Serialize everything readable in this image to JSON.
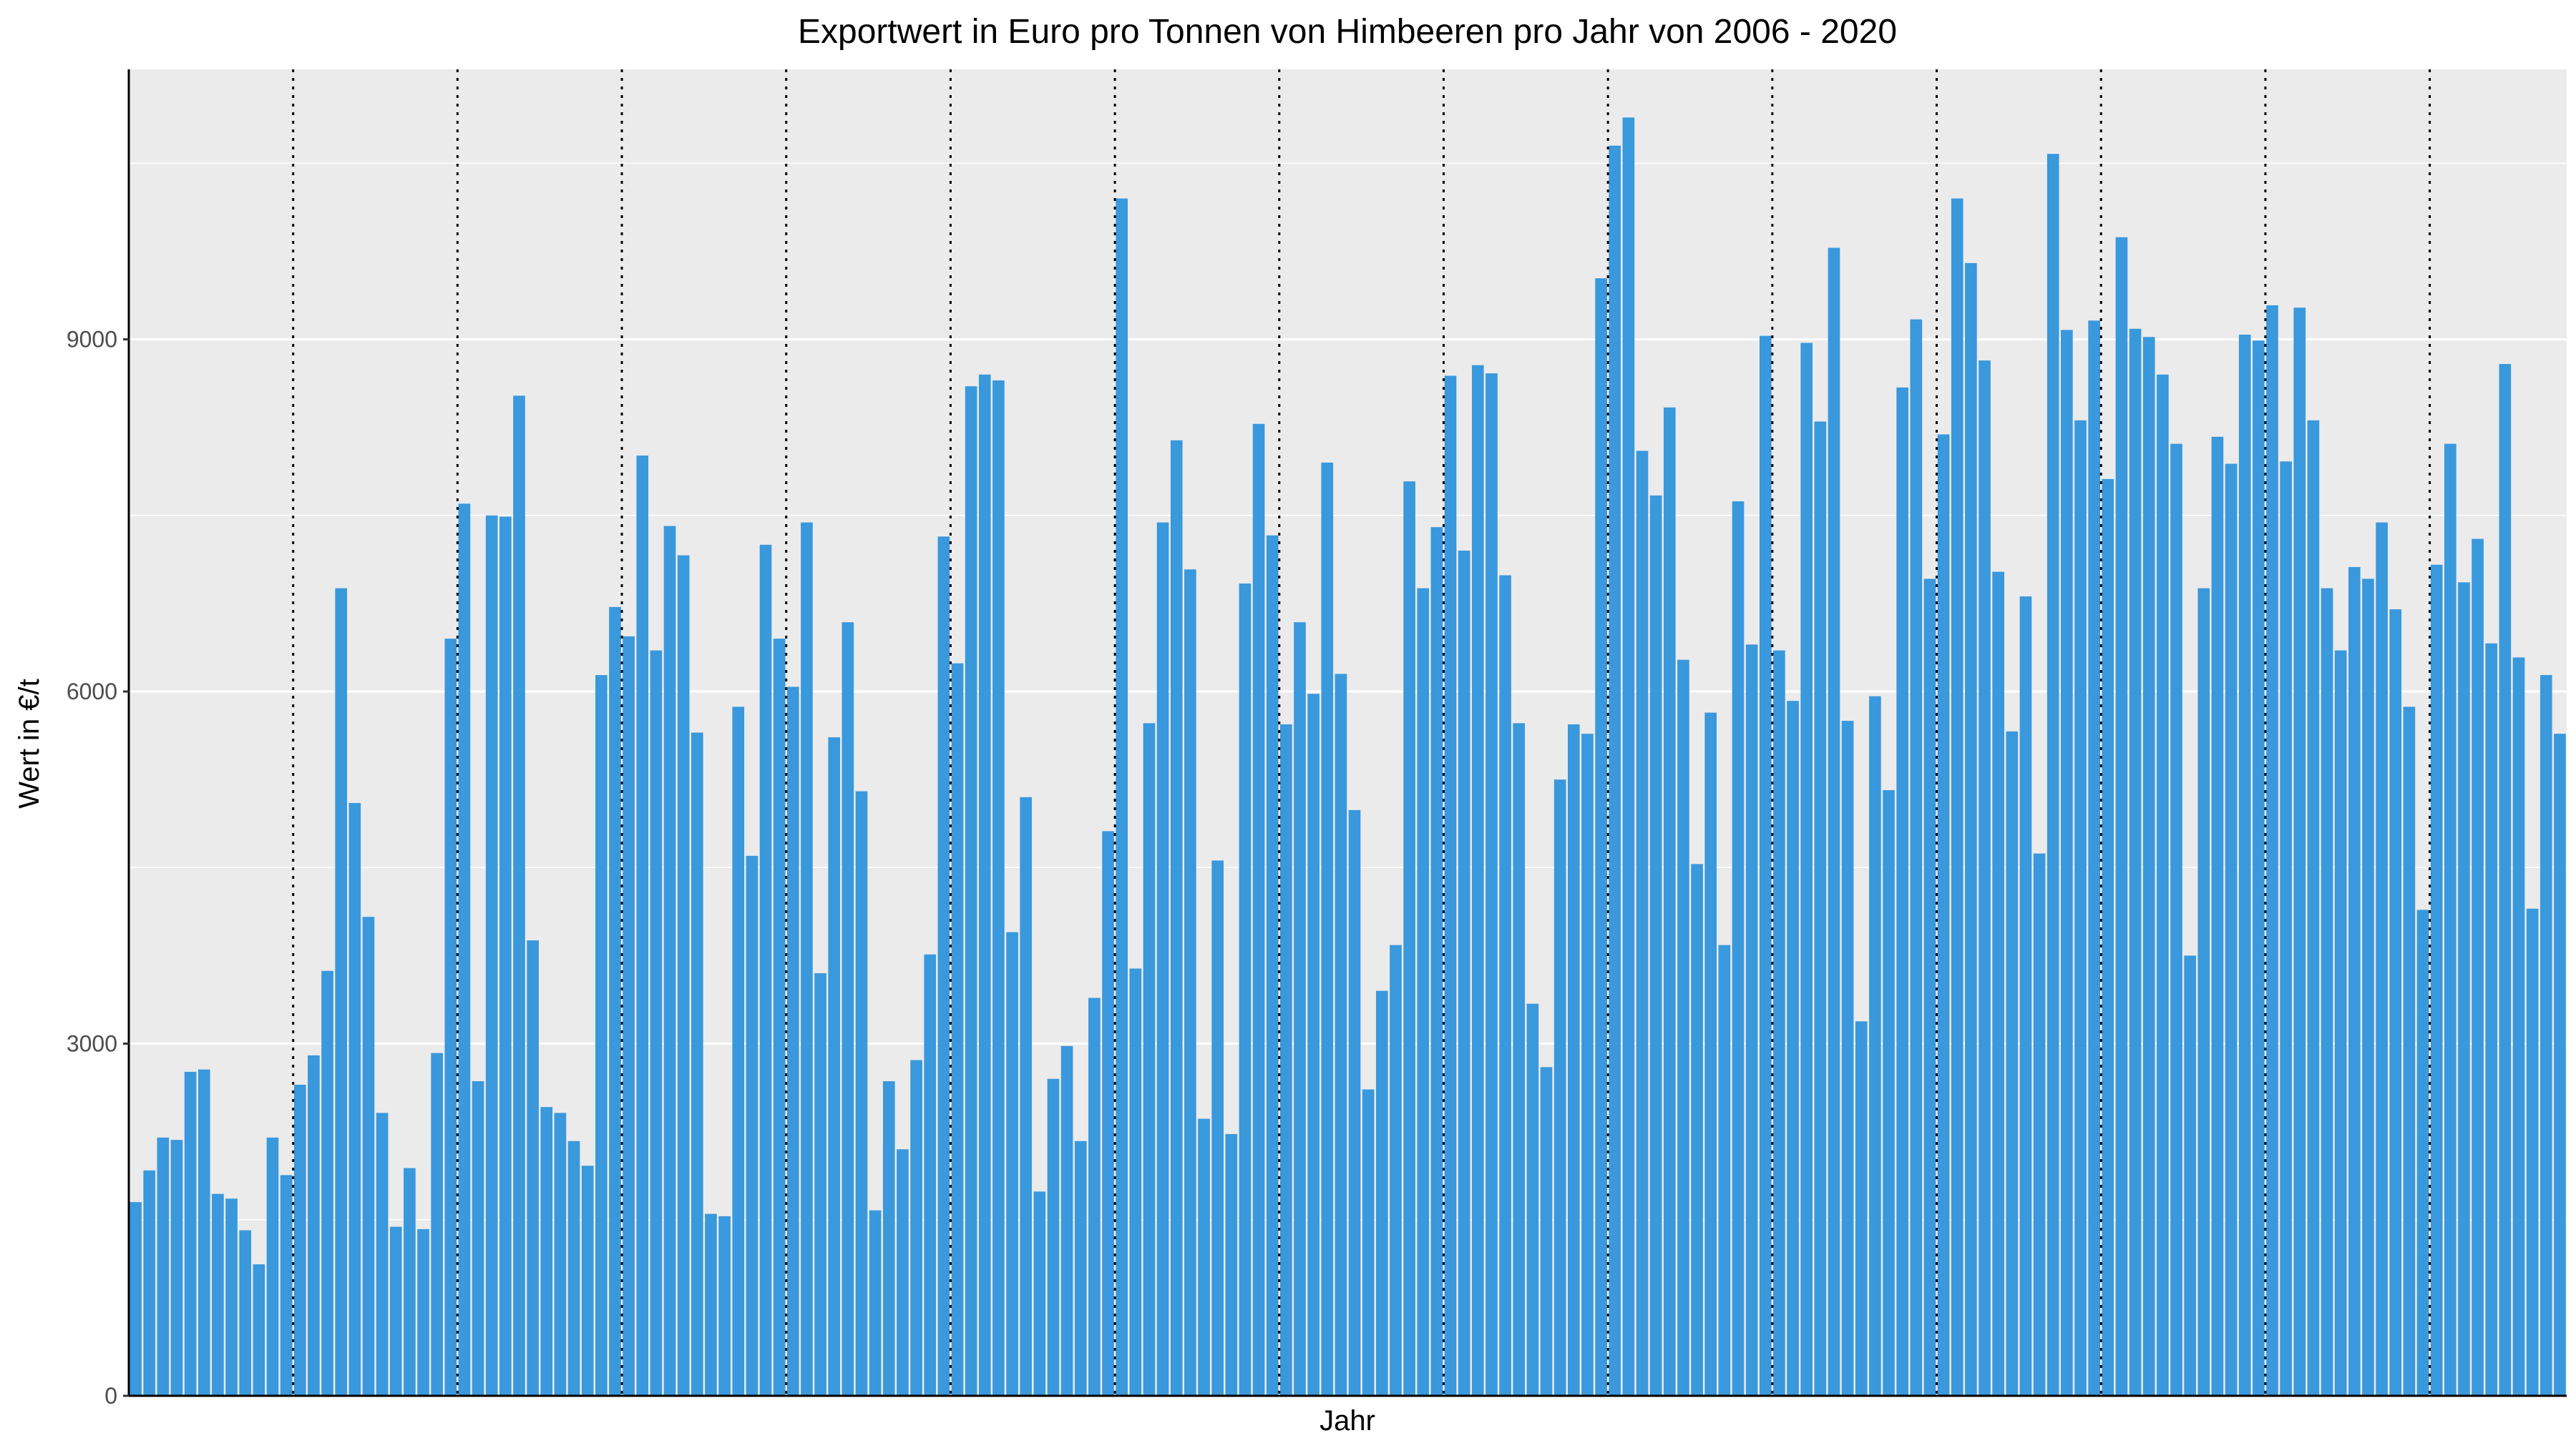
{
  "chart_data": {
    "type": "bar",
    "title": "Exportwert in Euro pro Tonnen von Himbeeren pro Jahr von 2006 - 2020",
    "xlabel": "Jahr",
    "ylabel": "Wert in €/t",
    "ylim": [
      0,
      11300
    ],
    "yticks": [
      0,
      3000,
      6000,
      9000
    ],
    "ytick_labels": [
      "0",
      "3000",
      "6000",
      "9000"
    ],
    "grid": true,
    "bar_color": "#3a98dc",
    "panel_color": "#ebebeb",
    "year_separator_style": "dotted",
    "months_per_year": 12,
    "values": [
      1650,
      1920,
      2200,
      2180,
      2760,
      2780,
      1720,
      1680,
      1410,
      1120,
      2200,
      1880,
      2650,
      2900,
      3620,
      6880,
      5050,
      4080,
      2410,
      1440,
      1940,
      1420,
      2920,
      6450,
      7600,
      2680,
      7500,
      7490,
      8520,
      3880,
      2460,
      2410,
      2170,
      1960,
      6140,
      6720,
      6470,
      8010,
      6350,
      7410,
      7160,
      5650,
      1550,
      1530,
      5870,
      4600,
      7250,
      6450,
      6040,
      7440,
      3600,
      5610,
      6590,
      5150,
      1580,
      2680,
      2100,
      2860,
      3760,
      7320,
      6240,
      8600,
      8700,
      8650,
      3950,
      5100,
      1740,
      2700,
      2980,
      2170,
      3390,
      4810,
      10200,
      3640,
      5730,
      7440,
      8140,
      7040,
      2360,
      4560,
      2230,
      6920,
      8280,
      7330,
      5720,
      6590,
      5980,
      7950,
      6150,
      4990,
      2610,
      3450,
      3840,
      7790,
      6880,
      7400,
      8690,
      7200,
      8780,
      8710,
      6990,
      5730,
      3340,
      2800,
      5250,
      5720,
      5640,
      9520,
      10650,
      10890,
      8050,
      7670,
      8420,
      6270,
      4530,
      5820,
      3840,
      7620,
      6400,
      9030,
      6350,
      5920,
      8970,
      8300,
      9780,
      5750,
      3190,
      5960,
      5160,
      8590,
      9170,
      6960,
      8190,
      10200,
      9650,
      8820,
      7020,
      5660,
      6810,
      4620,
      10580,
      9080,
      8310,
      9160,
      7810,
      9870,
      9090,
      9020,
      8700,
      8110,
      3750,
      6880,
      8170,
      7940,
      9040,
      8990,
      9290,
      7960,
      9270,
      8310,
      6880,
      6350,
      7060,
      6960,
      7440,
      6700,
      5870,
      4140,
      7080,
      8110,
      6930,
      7300,
      6410,
      8790,
      6290,
      4150,
      6140,
      5640
    ]
  }
}
